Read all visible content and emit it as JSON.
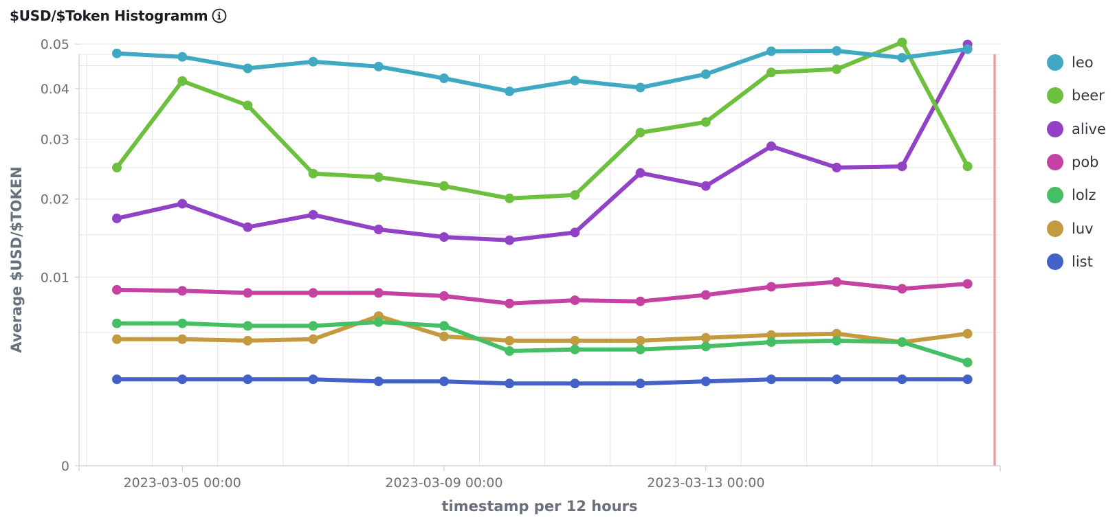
{
  "panel": {
    "title": "$USD/$Token Histogramm",
    "info_icon": "info-circle-icon"
  },
  "chart_data": {
    "type": "line",
    "title": "$USD/$Token Histogramm",
    "xlabel": "timestamp per 12 hours",
    "ylabel": "Average $USD/$TOKEN",
    "y_scale": "sqrt",
    "ylim": [
      0,
      0.054
    ],
    "y_ticks": [
      0,
      0.01,
      0.02,
      0.03,
      0.04,
      0.05
    ],
    "y_tick_labels": [
      "0",
      "0.01",
      "0.02",
      "0.03",
      "0.04",
      "0.05"
    ],
    "x_tick_labels": [
      {
        "index": 1,
        "label": "2023-03-05 00:00"
      },
      {
        "index": 5,
        "label": "2023-03-09 00:00"
      },
      {
        "index": 9,
        "label": "2023-03-13 00:00"
      }
    ],
    "grid": true,
    "legend_position": "right",
    "series": [
      {
        "name": "leo",
        "color": "#3fa9c3",
        "values": [
          0.0478,
          0.047,
          0.0444,
          0.0459,
          0.0448,
          0.0422,
          0.0394,
          0.0417,
          0.0402,
          0.0431,
          0.0483,
          0.0484,
          0.0468,
          0.0488
        ]
      },
      {
        "name": "beer",
        "color": "#6dbf3e",
        "values": [
          0.025,
          0.0416,
          0.0365,
          0.024,
          0.0234,
          0.022,
          0.0201,
          0.0206,
          0.0312,
          0.0332,
          0.0435,
          0.0442,
          0.0504,
          0.0252
        ]
      },
      {
        "name": "alive",
        "color": "#9142c6",
        "values": [
          0.0172,
          0.0193,
          0.016,
          0.0177,
          0.0157,
          0.0147,
          0.0143,
          0.0153,
          0.0241,
          0.022,
          0.0287,
          0.025,
          0.0252,
          0.0499
        ]
      },
      {
        "name": "pob",
        "color": "#c542a3",
        "values": [
          0.0087,
          0.0086,
          0.0084,
          0.0084,
          0.0084,
          0.0081,
          0.0074,
          0.0077,
          0.0076,
          0.0082,
          0.009,
          0.0095,
          0.0088,
          0.0093
        ]
      },
      {
        "name": "lolz",
        "color": "#44bf64",
        "values": [
          0.0057,
          0.0057,
          0.0055,
          0.0055,
          0.0058,
          0.0055,
          0.0037,
          0.0038,
          0.0038,
          0.004,
          0.0043,
          0.0044,
          0.0043,
          0.003
        ]
      },
      {
        "name": "luv",
        "color": "#c49a3e",
        "values": [
          0.0045,
          0.0045,
          0.0044,
          0.0045,
          0.0063,
          0.0047,
          0.0044,
          0.0044,
          0.0044,
          0.0046,
          0.0048,
          0.0049,
          0.0043,
          0.0049
        ]
      },
      {
        "name": "list",
        "color": "#4361c6",
        "values": [
          0.0021,
          0.0021,
          0.0021,
          0.0021,
          0.002,
          0.002,
          0.0019,
          0.0019,
          0.0019,
          0.002,
          0.0021,
          0.0021,
          0.0021,
          0.0021
        ]
      }
    ]
  }
}
